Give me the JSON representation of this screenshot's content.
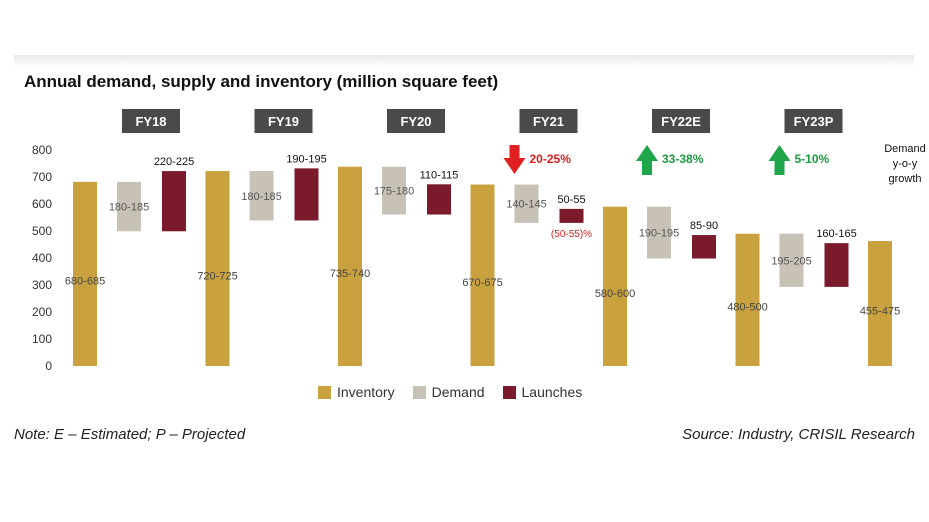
{
  "title": "Annual demand, supply and inventory (million square feet)",
  "note": "Note: E – Estimated; P – Projected",
  "source": "Source: Industry, CRISIL Research",
  "growth_header": [
    "Demand",
    "y-o-y",
    "growth"
  ],
  "colors": {
    "inventory": "#c9a23f",
    "demand": "#c8c1b6",
    "launches": "#7a1a2b",
    "year_box": "#4a4a4a",
    "up_arrow": "#1fa64a",
    "down_arrow": "#e02020",
    "green_text": "#1a9a3f",
    "red_text": "#d81f1f"
  },
  "chart_data": {
    "type": "waterfall",
    "title": "Annual demand, supply and inventory (million square feet)",
    "ylim": [
      0,
      800
    ],
    "yticks": [
      0,
      100,
      200,
      300,
      400,
      500,
      600,
      700,
      800
    ],
    "legend": [
      "Inventory",
      "Demand",
      "Launches"
    ],
    "years": [
      {
        "label": "FY18",
        "inventory": {
          "range": "680-685",
          "value": 682
        },
        "demand": {
          "range": "180-185",
          "value": 183
        },
        "launches": {
          "range": "220-225",
          "value": 223
        },
        "growth": null
      },
      {
        "label": "FY19",
        "inventory": {
          "range": "720-725",
          "value": 722
        },
        "demand": {
          "range": "180-185",
          "value": 183
        },
        "launches": {
          "range": "190-195",
          "value": 193
        },
        "growth": null
      },
      {
        "label": "FY20",
        "inventory": {
          "range": "735-740",
          "value": 738
        },
        "demand": {
          "range": "175-180",
          "value": 177
        },
        "launches": {
          "range": "110-115",
          "value": 112
        },
        "growth": null
      },
      {
        "label": "FY21",
        "inventory": {
          "range": "670-675",
          "value": 672
        },
        "demand": {
          "range": "140-145",
          "value": 142
        },
        "launches": {
          "range": "50-55",
          "value": 52,
          "change": "(50-55)%"
        },
        "growth": {
          "direction": "down",
          "text": "20-25%"
        }
      },
      {
        "label": "FY22E",
        "inventory": {
          "range": "580-600",
          "value": 590
        },
        "demand": {
          "range": "190-195",
          "value": 192
        },
        "launches": {
          "range": "85-90",
          "value": 87
        },
        "growth": {
          "direction": "up",
          "text": "33-38%"
        }
      },
      {
        "label": "FY23P",
        "inventory": {
          "range": "480-500",
          "value": 490
        },
        "demand": {
          "range": "195-205",
          "value": 197
        },
        "launches": {
          "range": "160-165",
          "value": 162
        },
        "growth": {
          "direction": "up",
          "text": "5-10%"
        }
      }
    ],
    "final_inventory": {
      "range": "455-475",
      "value": 463
    }
  }
}
